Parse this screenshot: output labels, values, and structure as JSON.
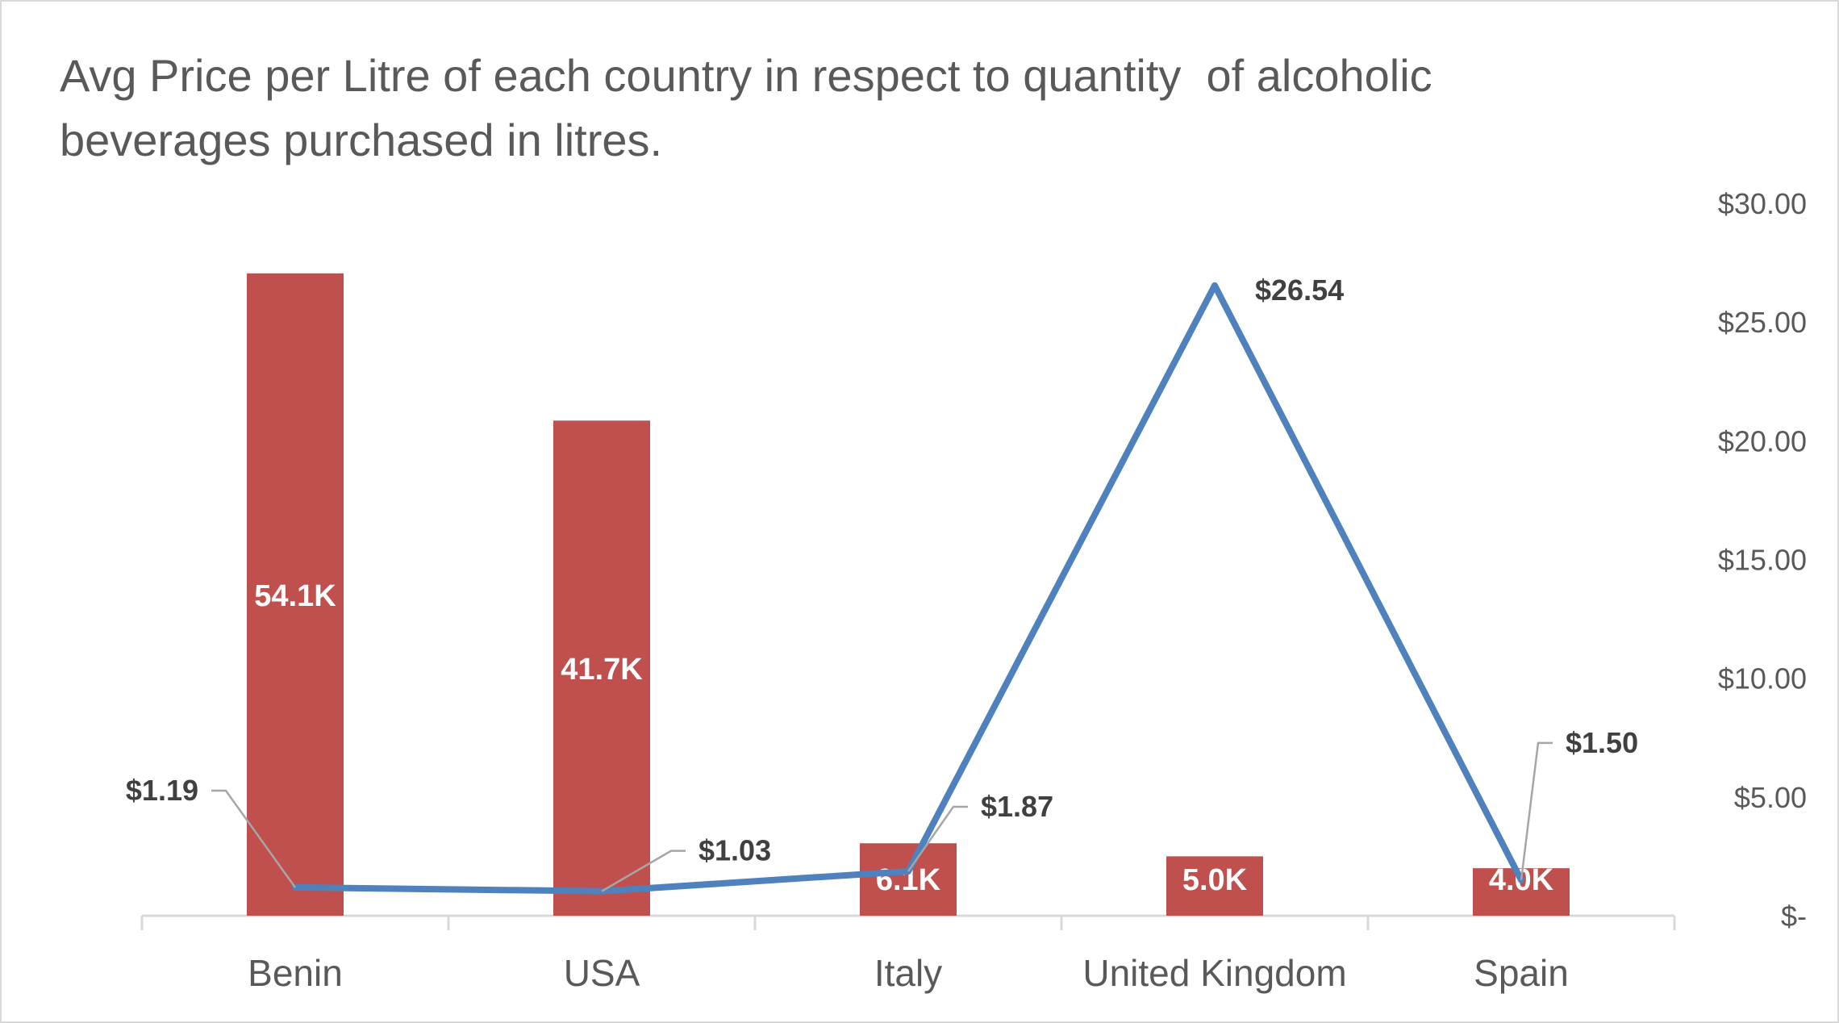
{
  "chart_data": {
    "type": "bar",
    "title": "Avg Price per Litre of each country in respect to quantity  of alcoholic beverages purchased in litres.",
    "categories": [
      "Benin",
      "USA",
      "Italy",
      "United Kingdom",
      "Spain"
    ],
    "series": [
      {
        "type": "bar",
        "axis": "left",
        "values": [
          54100,
          41700,
          6100,
          5000,
          4000
        ],
        "labels": [
          "54.1K",
          "41.7K",
          "6.1K",
          "5.0K",
          "4.0K"
        ],
        "color": "#c0504d"
      },
      {
        "type": "line",
        "axis": "right",
        "values": [
          1.19,
          1.03,
          1.87,
          26.54,
          1.5
        ],
        "labels": [
          "$1.19",
          "$1.03",
          "$1.87",
          "$26.54",
          "$1.50"
        ],
        "color": "#4f81bd"
      }
    ],
    "y_left": {
      "range": [
        0,
        60000
      ],
      "visible": false
    },
    "y_right": {
      "range": [
        0,
        30
      ],
      "ticks": [
        0,
        5,
        10,
        15,
        20,
        25,
        30
      ],
      "tick_labels": [
        "$-",
        "$5.00",
        "$10.00",
        "$15.00",
        "$20.00",
        "$25.00",
        "$30.00"
      ]
    },
    "grid": false,
    "legend": "none"
  }
}
